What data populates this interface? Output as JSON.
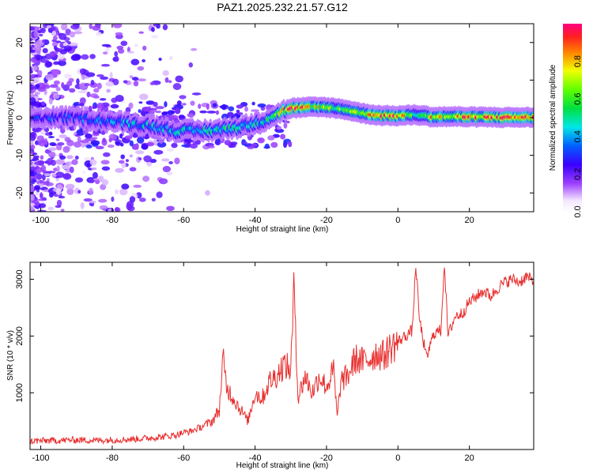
{
  "title": "PAZ1.2025.232.21.57.G12",
  "chart_data": [
    {
      "type": "heatmap",
      "xlabel": "Height of straight line (km)",
      "ylabel": "Frequency (Hz)",
      "xlim": [
        -103,
        38
      ],
      "ylim": [
        -25,
        25
      ],
      "xticks": [
        "-100",
        "-80",
        "-60",
        "-40",
        "-20",
        "0",
        "20"
      ],
      "yticks": [
        "-20",
        "-10",
        "0",
        "10",
        "20"
      ],
      "colorbar": {
        "label": "Normalized spectral amplitude",
        "range": [
          0,
          1
        ],
        "ticks": [
          "0.0",
          "0.2",
          "0.4",
          "0.6",
          "0.8"
        ]
      },
      "ridge": {
        "x": [
          -103,
          -90,
          -80,
          -70,
          -62,
          -55,
          -48,
          -42,
          -38,
          -34,
          -30,
          -25,
          -20,
          -15,
          -10,
          -5,
          0,
          5,
          10,
          15,
          20,
          30,
          38
        ],
        "freq_hz": [
          0,
          0,
          -1,
          -2,
          -3.5,
          -3.5,
          -3,
          -2,
          -1,
          1,
          2.5,
          2.8,
          2.8,
          2.2,
          1.2,
          0.6,
          0.5,
          0.8,
          0.2,
          0.3,
          0.2,
          0.1,
          0.1
        ],
        "amplitude": [
          0.3,
          0.35,
          0.4,
          0.45,
          0.45,
          0.5,
          0.55,
          0.5,
          0.45,
          0.6,
          0.95,
          0.85,
          0.7,
          0.6,
          0.7,
          0.95,
          0.95,
          0.6,
          0.85,
          0.7,
          0.95,
          0.9,
          0.9
        ]
      }
    },
    {
      "type": "line",
      "xlabel": "Height of straight line (km)",
      "ylabel": "SNR (10 * v/v)",
      "xlim": [
        -103,
        38
      ],
      "ylim": [
        0,
        3300
      ],
      "xticks": [
        "-100",
        "-80",
        "-60",
        "-40",
        "-20",
        "0",
        "20"
      ],
      "yticks": [
        "1000",
        "2000",
        "3000"
      ],
      "series": [
        {
          "color": "#e8302f",
          "x": [
            -103,
            -95,
            -90,
            -85,
            -80,
            -75,
            -70,
            -65,
            -62,
            -60,
            -58,
            -55,
            -52,
            -50,
            -49,
            -48,
            -46,
            -44,
            -42,
            -40,
            -38,
            -36,
            -34,
            -32,
            -30,
            -29,
            -28,
            -26,
            -24,
            -22,
            -20,
            -18,
            -17,
            -16,
            -14,
            -12,
            -10,
            -8,
            -6,
            -4,
            -2,
            0,
            2,
            4,
            5,
            6,
            8,
            10,
            12,
            13,
            14,
            16,
            18,
            20,
            22,
            24,
            26,
            28,
            30,
            32,
            34,
            36,
            38
          ],
          "y": [
            150,
            160,
            170,
            160,
            170,
            180,
            200,
            230,
            260,
            300,
            320,
            400,
            500,
            700,
            1600,
            1100,
            900,
            700,
            500,
            1000,
            900,
            1200,
            1300,
            1500,
            1400,
            2950,
            900,
            1300,
            1000,
            1300,
            1100,
            1400,
            550,
            1200,
            1300,
            1600,
            1550,
            1600,
            1700,
            1650,
            1800,
            1900,
            2000,
            2100,
            3250,
            2300,
            1600,
            2050,
            2100,
            3300,
            2000,
            2350,
            2400,
            2600,
            2700,
            2800,
            2700,
            2850,
            2950,
            3000,
            2950,
            3050,
            2950
          ]
        }
      ]
    }
  ]
}
